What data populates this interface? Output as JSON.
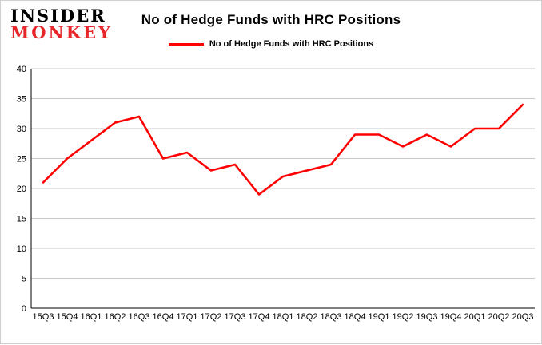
{
  "logo": {
    "line1": "INSIDER",
    "line2": "MONKEY",
    "color_line1": "#000000",
    "color_line2": "#e8262a"
  },
  "title": "No of Hedge Funds with HRC Positions",
  "legend": {
    "label": "No of Hedge Funds with HRC Positions",
    "color": "#ff0000"
  },
  "chart_data": {
    "type": "line",
    "title": "No of Hedge Funds with HRC Positions",
    "categories": [
      "15Q3",
      "15Q4",
      "16Q1",
      "16Q2",
      "16Q3",
      "16Q4",
      "17Q1",
      "17Q2",
      "17Q3",
      "17Q4",
      "18Q1",
      "18Q2",
      "18Q3",
      "18Q4",
      "19Q1",
      "19Q2",
      "19Q3",
      "19Q4",
      "20Q1",
      "20Q2",
      "20Q3"
    ],
    "values": [
      21,
      25,
      28,
      31,
      32,
      25,
      26,
      23,
      24,
      19,
      22,
      23,
      24,
      29,
      29,
      27,
      29,
      27,
      30,
      30,
      34
    ],
    "xlabel": "",
    "ylabel": "",
    "ylim": [
      0,
      40
    ],
    "yticks": [
      0,
      5,
      10,
      15,
      20,
      25,
      30,
      35,
      40
    ],
    "line_color": "#ff0000",
    "grid": true,
    "grid_color": "#c9c9c9",
    "legend_position": "top"
  }
}
